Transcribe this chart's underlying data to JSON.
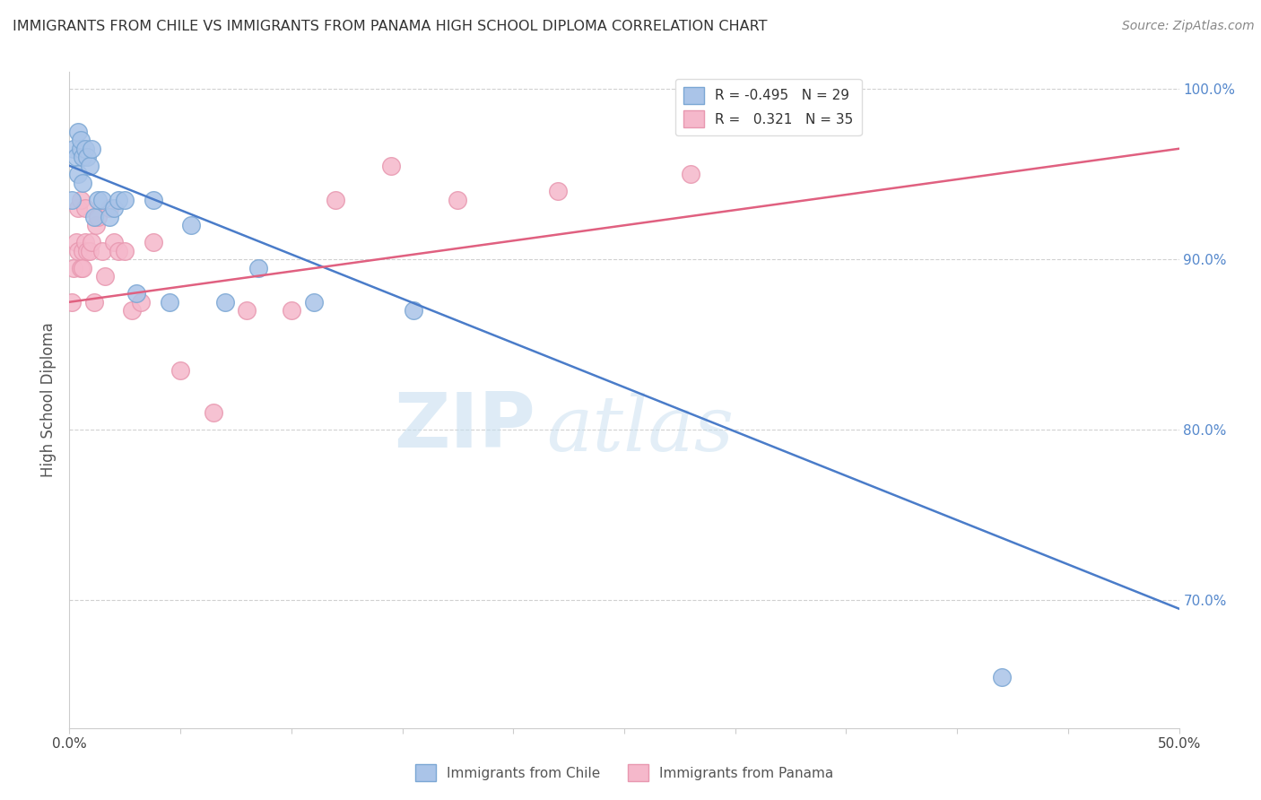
{
  "title": "IMMIGRANTS FROM CHILE VS IMMIGRANTS FROM PANAMA HIGH SCHOOL DIPLOMA CORRELATION CHART",
  "source": "Source: ZipAtlas.com",
  "ylabel": "High School Diploma",
  "xlim": [
    0.0,
    0.5
  ],
  "ylim": [
    0.625,
    1.01
  ],
  "xticks": [
    0.0,
    0.05,
    0.1,
    0.15,
    0.2,
    0.25,
    0.3,
    0.35,
    0.4,
    0.45,
    0.5
  ],
  "xticklabels": [
    "0.0%",
    "",
    "",
    "",
    "",
    "",
    "",
    "",
    "",
    "",
    "50.0%"
  ],
  "yticks_right": [
    0.7,
    0.8,
    0.9,
    1.0
  ],
  "yticklabels_right": [
    "70.0%",
    "80.0%",
    "90.0%",
    "100.0%"
  ],
  "chile_color": "#aac4e8",
  "panama_color": "#f5b8cb",
  "chile_edge": "#7ba7d4",
  "panama_edge": "#e898b0",
  "trend_chile_color": "#4a7cc9",
  "trend_panama_color": "#e06080",
  "legend_r_chile": "R = -0.495",
  "legend_n_chile": "N = 29",
  "legend_r_panama": "R =   0.321",
  "legend_n_panama": "N = 35",
  "watermark_zip": "ZIP",
  "watermark_atlas": "atlas",
  "chile_x": [
    0.001,
    0.002,
    0.003,
    0.004,
    0.004,
    0.005,
    0.005,
    0.006,
    0.006,
    0.007,
    0.008,
    0.009,
    0.01,
    0.011,
    0.013,
    0.015,
    0.018,
    0.02,
    0.022,
    0.025,
    0.03,
    0.038,
    0.045,
    0.055,
    0.07,
    0.085,
    0.11,
    0.155,
    0.42
  ],
  "chile_y": [
    0.935,
    0.965,
    0.96,
    0.95,
    0.975,
    0.965,
    0.97,
    0.96,
    0.945,
    0.965,
    0.96,
    0.955,
    0.965,
    0.925,
    0.935,
    0.935,
    0.925,
    0.93,
    0.935,
    0.935,
    0.88,
    0.935,
    0.875,
    0.92,
    0.875,
    0.895,
    0.875,
    0.87,
    0.655
  ],
  "panama_x": [
    0.001,
    0.002,
    0.003,
    0.004,
    0.004,
    0.005,
    0.005,
    0.006,
    0.006,
    0.007,
    0.007,
    0.008,
    0.009,
    0.01,
    0.011,
    0.012,
    0.013,
    0.015,
    0.016,
    0.018,
    0.02,
    0.022,
    0.025,
    0.028,
    0.032,
    0.038,
    0.05,
    0.065,
    0.08,
    0.1,
    0.12,
    0.145,
    0.175,
    0.22,
    0.28
  ],
  "panama_y": [
    0.875,
    0.895,
    0.91,
    0.93,
    0.905,
    0.895,
    0.935,
    0.905,
    0.895,
    0.93,
    0.91,
    0.905,
    0.905,
    0.91,
    0.875,
    0.92,
    0.925,
    0.905,
    0.89,
    0.93,
    0.91,
    0.905,
    0.905,
    0.87,
    0.875,
    0.91,
    0.835,
    0.81,
    0.87,
    0.87,
    0.935,
    0.955,
    0.935,
    0.94,
    0.95
  ],
  "trend_chile_x0": 0.0,
  "trend_chile_y0": 0.955,
  "trend_chile_x1": 0.5,
  "trend_chile_y1": 0.695,
  "trend_panama_x0": 0.0,
  "trend_panama_y0": 0.875,
  "trend_panama_x1": 0.5,
  "trend_panama_y1": 0.965
}
